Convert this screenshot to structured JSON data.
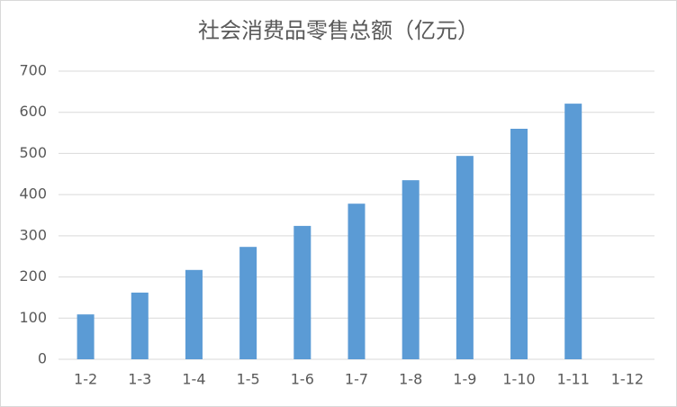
{
  "chart_data": {
    "type": "bar",
    "title": "社会消费品零售总额（亿元）",
    "categories": [
      "1-2",
      "1-3",
      "1-4",
      "1-5",
      "1-6",
      "1-7",
      "1-8",
      "1-9",
      "1-10",
      "1-11",
      "1-12"
    ],
    "values": [
      109,
      162,
      217,
      273,
      324,
      378,
      435,
      494,
      560,
      621,
      null
    ],
    "color": "#5b9bd5",
    "ylim": [
      0,
      700
    ],
    "yticks": [
      0,
      100,
      200,
      300,
      400,
      500,
      600,
      700
    ],
    "grid": true
  }
}
